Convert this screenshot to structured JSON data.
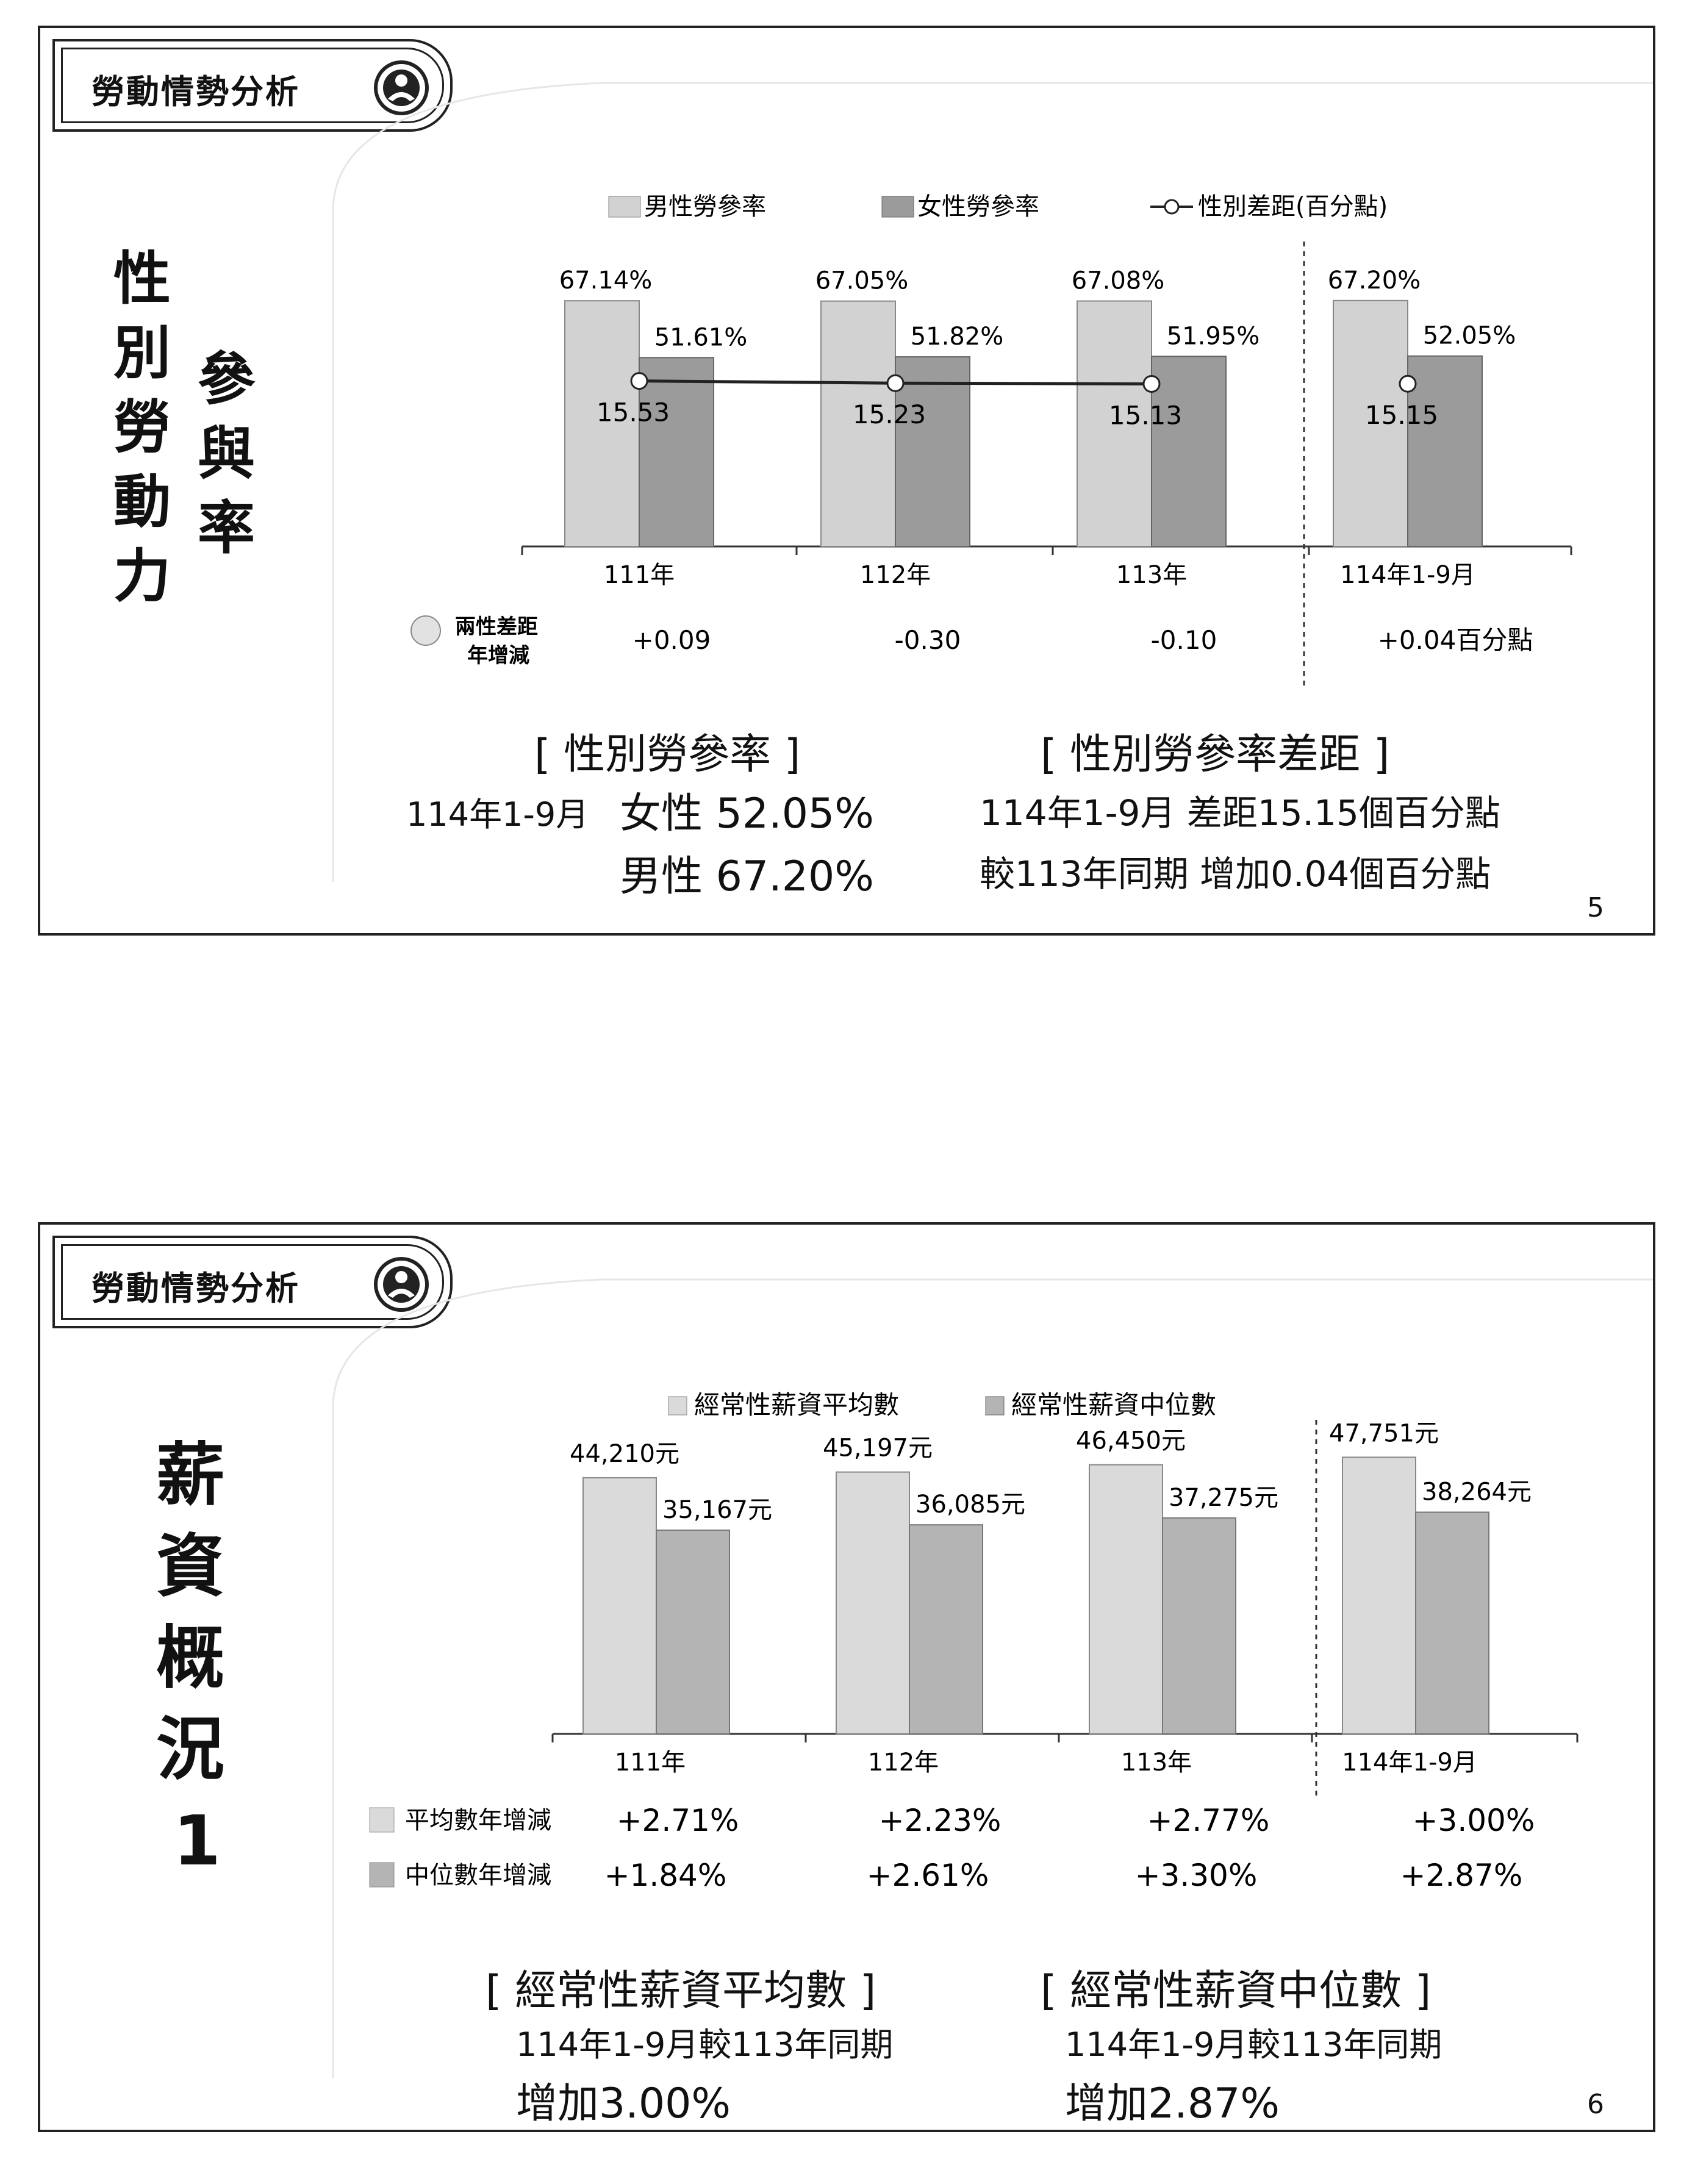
{
  "slides": [
    {
      "header": "勞動情勢分析",
      "title_col1": [
        "性",
        "別",
        "勞",
        "動",
        "力"
      ],
      "title_col2": [
        "參",
        "與",
        "率"
      ],
      "page": "5",
      "legend": {
        "male": "男性勞參率",
        "female": "女性勞參率",
        "gap": "性別差距(百分點)"
      },
      "diff_row": {
        "label_line1": "兩性差距",
        "label_line2": "年增減",
        "values": [
          "+0.09",
          "-0.30",
          "-0.10",
          "+0.04百分點"
        ]
      },
      "summary": {
        "left_title": "[ 性別勞參率 ]",
        "left_period": "114年1-9月",
        "left_female": "女性 52.05%",
        "left_male": "男性 67.20%",
        "right_title": "[ 性別勞參率差距 ]",
        "right_line1": "114年1-9月  差距15.15個百分點",
        "right_line2": "較113年同期  增加0.04個百分點"
      }
    },
    {
      "header": "勞動情勢分析",
      "title_col1": [
        "薪",
        "資",
        "概",
        "況",
        "1"
      ],
      "page": "6",
      "legend": {
        "avg": "經常性薪資平均數",
        "median": "經常性薪資中位數"
      },
      "avg_row": {
        "label": "平均數年增減",
        "values": [
          "+2.71%",
          "+2.23%",
          "+2.77%",
          "+3.00%"
        ]
      },
      "med_row": {
        "label": "中位數年增減",
        "values": [
          "+1.84%",
          "+2.61%",
          "+3.30%",
          "+2.87%"
        ]
      },
      "summary": {
        "left_title": "[ 經常性薪資平均數 ]",
        "left_line1": "114年1-9月較113年同期",
        "left_line2": "增加3.00%",
        "right_title": "[ 經常性薪資中位數 ]",
        "right_line1": "114年1-9月較113年同期",
        "right_line2": "增加2.87%"
      }
    }
  ],
  "chart_data": [
    {
      "type": "bar",
      "categories": [
        "111年",
        "112年",
        "113年",
        "114年1-9月"
      ],
      "series": [
        {
          "name": "男性勞參率",
          "values": [
            67.14,
            67.05,
            67.08,
            67.2
          ],
          "labels": [
            "67.14%",
            "67.05%",
            "67.08%",
            "67.20%"
          ],
          "color": "#d2d2d2"
        },
        {
          "name": "女性勞參率",
          "values": [
            51.61,
            51.82,
            51.95,
            52.05
          ],
          "labels": [
            "51.61%",
            "51.82%",
            "51.95%",
            "52.05%"
          ],
          "color": "#9b9b9b"
        },
        {
          "name": "性別差距(百分點)",
          "type": "line",
          "values": [
            15.53,
            15.23,
            15.13,
            15.15
          ],
          "labels": [
            "15.53",
            "15.23",
            "15.13",
            "15.15"
          ],
          "line_connects_first": 3
        }
      ],
      "ylim": [
        0,
        75
      ],
      "separator_before": "114年1-9月"
    },
    {
      "type": "bar",
      "categories": [
        "111年",
        "112年",
        "113年",
        "114年1-9月"
      ],
      "series": [
        {
          "name": "經常性薪資平均數",
          "values": [
            44210,
            45197,
            46450,
            47751
          ],
          "labels": [
            "44,210元",
            "45,197元",
            "46,450元",
            "47,751元"
          ],
          "color": "#dadada"
        },
        {
          "name": "經常性薪資中位數",
          "values": [
            35167,
            36085,
            37275,
            38264
          ],
          "labels": [
            "35,167元",
            "36,085元",
            "37,275元",
            "38,264元"
          ],
          "color": "#b4b4b4"
        }
      ],
      "ylim": [
        0,
        50000
      ],
      "separator_before": "114年1-9月"
    }
  ]
}
